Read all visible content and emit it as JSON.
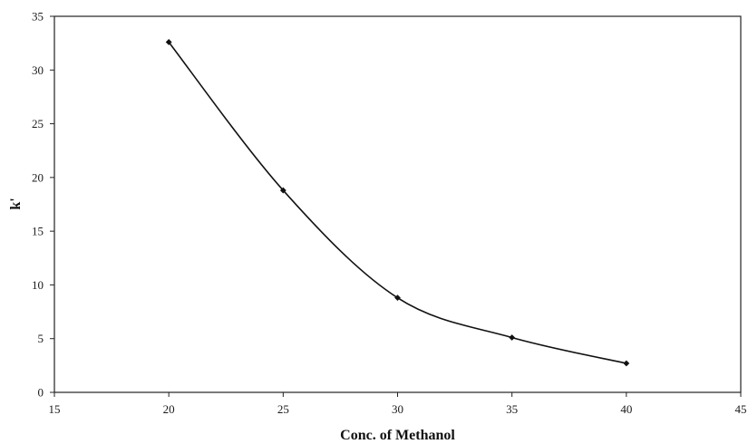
{
  "chart_data": {
    "type": "line",
    "title": "",
    "xlabel": "Conc. of Methanol",
    "ylabel": "k'",
    "xlim": [
      15,
      45
    ],
    "ylim": [
      0,
      35
    ],
    "xticks": [
      15,
      20,
      25,
      30,
      35,
      40,
      45
    ],
    "yticks": [
      0,
      5,
      10,
      15,
      20,
      25,
      30,
      35
    ],
    "grid": false,
    "legend": "none",
    "smooth": true,
    "series": [
      {
        "x": [
          20,
          25,
          30,
          35,
          40
        ],
        "values": [
          32.6,
          18.8,
          8.8,
          5.1,
          2.7
        ],
        "color": "#111111",
        "marker": "diamond"
      }
    ]
  }
}
